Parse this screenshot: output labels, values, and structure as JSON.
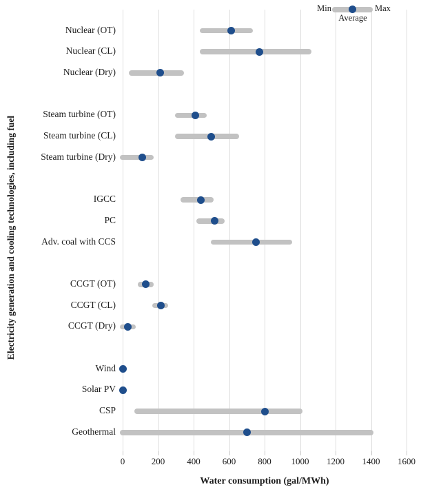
{
  "legend": {
    "min": "Min",
    "max": "Max",
    "average": "Average"
  },
  "x_axis": {
    "label": "Water consumption (gal/MWh)",
    "ticks": [
      0,
      200,
      400,
      600,
      800,
      1000,
      1200,
      1400,
      1600
    ],
    "min": 0,
    "max": 1600
  },
  "y_axis": {
    "label": "Electricity generation and cooling technologies, including fuel"
  },
  "colors": {
    "bar": "#c2c2c2",
    "dot": "#1f4e8c",
    "gridline": "#dedede",
    "tick": "#c9c9c9",
    "text": "#1c1c1c"
  },
  "chart_data": {
    "type": "bar",
    "subtype": "horizontal min-max range bars with average dot",
    "title": "",
    "xlabel": "Water consumption (gal/MWh)",
    "ylabel": "Electricity generation and cooling technologies, including fuel",
    "xlim": [
      0,
      1600
    ],
    "xticks": [
      0,
      200,
      400,
      600,
      800,
      1000,
      1200,
      1400,
      1600
    ],
    "grid": "vertical",
    "legend_position": "top-right",
    "categories": [
      "Nuclear (OT)",
      "Nuclear (CL)",
      "Nuclear (Dry)",
      "Steam turbine (OT)",
      "Steam turbine (CL)",
      "Steam turbine (Dry)",
      "IGCC",
      "PC",
      "Adv. coal with CCS",
      "CCGT (OT)",
      "CCGT (CL)",
      "CCGT (Dry)",
      "Wind",
      "Solar PV",
      "CSP",
      "Geothermal"
    ],
    "groups": [
      [
        0,
        1,
        2
      ],
      [
        3,
        4,
        5
      ],
      [
        6,
        7,
        8
      ],
      [
        9,
        10,
        11
      ],
      [
        12,
        13,
        14,
        15
      ]
    ],
    "series": [
      {
        "name": "Min",
        "values": [
          450,
          450,
          50,
          310,
          310,
          0,
          340,
          430,
          510,
          100,
          180,
          0,
          0,
          0,
          80,
          0
        ]
      },
      {
        "name": "Average",
        "values": [
          610,
          770,
          210,
          410,
          500,
          110,
          440,
          520,
          750,
          130,
          215,
          30,
          0,
          0,
          800,
          700
        ]
      },
      {
        "name": "Max",
        "values": [
          720,
          1050,
          330,
          460,
          640,
          160,
          500,
          560,
          940,
          160,
          240,
          60,
          0,
          0,
          1000,
          1400
        ]
      }
    ]
  }
}
